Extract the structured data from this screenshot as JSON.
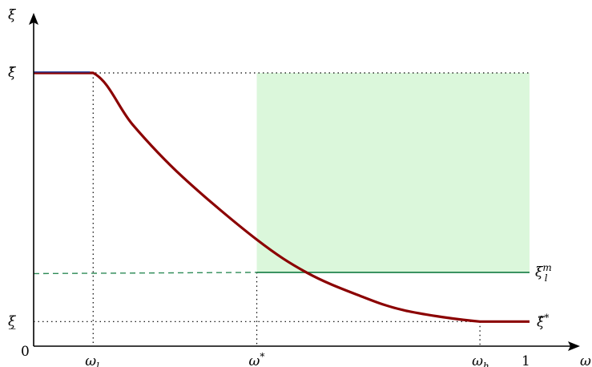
{
  "chart_data": {
    "type": "line",
    "axes": {
      "x": {
        "label": "ω",
        "range": [
          0,
          1.1
        ]
      },
      "y": {
        "label": "ξ",
        "range": [
          0,
          1.1
        ]
      }
    },
    "origin_label": "0",
    "x_ticks": [
      {
        "label": "ω",
        "sub": "l",
        "value": 0.12
      },
      {
        "label": "ω",
        "sup": "*",
        "value": 0.45
      },
      {
        "label": "ω",
        "sub": "h",
        "value": 0.9
      },
      {
        "label": "1",
        "value": 1.0
      }
    ],
    "y_ticks": [
      {
        "label": "ξ̄",
        "value": 1.0
      },
      {
        "label": "ξ̲",
        "value": 0.09
      }
    ],
    "region": {
      "x": [
        0.45,
        1.0
      ],
      "y": [
        0.27,
        1.0
      ],
      "color": "#dbf7db"
    },
    "series": [
      {
        "label": "ξ̂",
        "sup": "*",
        "color": "#8b0000",
        "points": [
          [
            0.0,
            1.0
          ],
          [
            0.12,
            1.0
          ],
          [
            0.2,
            0.81
          ],
          [
            0.3,
            0.62
          ],
          [
            0.45,
            0.39
          ],
          [
            0.55,
            0.27
          ],
          [
            0.65,
            0.19
          ],
          [
            0.75,
            0.13
          ],
          [
            0.9,
            0.09
          ],
          [
            1.0,
            0.09
          ]
        ]
      },
      {
        "label": "ξ",
        "sub": "l",
        "sup": "m",
        "color": "#2e8b57",
        "y": 0.27,
        "dashed_from": 0.0,
        "solid_from": 0.45,
        "to": 1.0
      }
    ],
    "grid": false,
    "blue_segment": {
      "x": [
        0.0,
        0.12
      ],
      "y": 1.0,
      "color": "#1f3f9f"
    }
  }
}
